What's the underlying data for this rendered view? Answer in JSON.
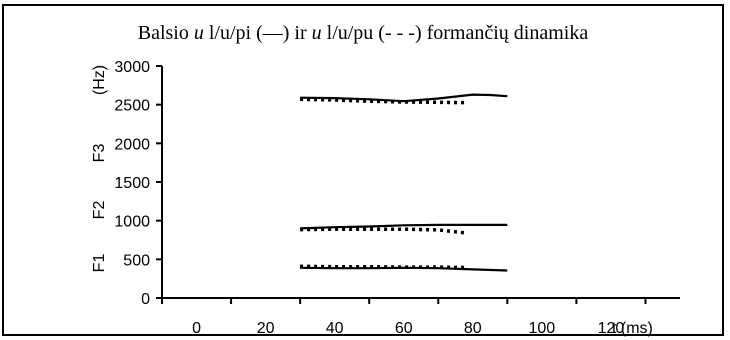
{
  "chart_data": {
    "type": "line",
    "title": {
      "prefix": "Balsio ",
      "vowel_1": "u",
      "part_1": " l/u/pi (—) ir ",
      "vowel_2": "u",
      "part_2": " l/u/pu (- - -) formančių dinamika"
    },
    "xlabel": "t (ms)",
    "ylabel_unit": "(Hz)",
    "ylabel_formants": [
      "F3",
      "F2",
      "F1"
    ],
    "xlim": [
      -10,
      140
    ],
    "ylim": [
      0,
      3000
    ],
    "x_ticks": [
      0,
      20,
      40,
      60,
      80,
      100,
      120
    ],
    "y_ticks": [
      0,
      500,
      1000,
      1500,
      2000,
      2500,
      3000
    ],
    "grid": false,
    "series": [
      {
        "name": "u l/u/pi — F1",
        "style": "solid",
        "x": [
          30,
          40,
          50,
          60,
          70,
          80,
          90
        ],
        "y": [
          390,
          385,
          385,
          390,
          385,
          370,
          355
        ]
      },
      {
        "name": "u l/u/pi — F2",
        "style": "solid",
        "x": [
          30,
          40,
          50,
          60,
          70,
          80,
          90
        ],
        "y": [
          900,
          915,
          925,
          940,
          945,
          945,
          945
        ]
      },
      {
        "name": "u l/u/pi — F3",
        "style": "solid",
        "x": [
          30,
          40,
          50,
          60,
          70,
          80,
          85,
          90
        ],
        "y": [
          2590,
          2585,
          2570,
          2545,
          2580,
          2630,
          2625,
          2610
        ]
      },
      {
        "name": "u l/u/pu — F1",
        "style": "dotted",
        "x": [
          30,
          40,
          50,
          60,
          70,
          78
        ],
        "y": [
          410,
          405,
          405,
          400,
          400,
          395
        ]
      },
      {
        "name": "u l/u/pu — F2",
        "style": "dotted",
        "x": [
          30,
          40,
          50,
          60,
          70,
          78
        ],
        "y": [
          885,
          890,
          890,
          890,
          880,
          840
        ]
      },
      {
        "name": "u l/u/pu — F3",
        "style": "dotted",
        "x": [
          30,
          40,
          50,
          60,
          70,
          78
        ],
        "y": [
          2570,
          2560,
          2545,
          2535,
          2530,
          2525
        ]
      }
    ]
  }
}
